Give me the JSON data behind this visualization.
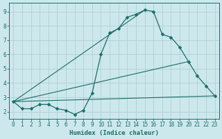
{
  "xlabel": "Humidex (Indice chaleur)",
  "background_color": "#cde8ec",
  "grid_color": "#aecfd4",
  "line_color": "#1a6b6b",
  "xlim": [
    -0.5,
    23.5
  ],
  "ylim": [
    1.5,
    9.6
  ],
  "line1_x": [
    0,
    1,
    2,
    3,
    4,
    5,
    6,
    7,
    8,
    9,
    10,
    11,
    12,
    13,
    14,
    15,
    16,
    17,
    18,
    19,
    20,
    21,
    22,
    23
  ],
  "line1_y": [
    2.7,
    2.2,
    2.2,
    2.5,
    2.5,
    2.2,
    2.1,
    1.8,
    2.1,
    3.3,
    6.0,
    7.5,
    7.8,
    8.6,
    8.8,
    9.1,
    9.0,
    7.4,
    7.2,
    6.5,
    5.5,
    4.5,
    3.8,
    3.1
  ],
  "line2_x": [
    0,
    23
  ],
  "line2_y": [
    2.7,
    3.1
  ],
  "line3_x": [
    0,
    20
  ],
  "line3_y": [
    2.7,
    5.5
  ],
  "line4_x": [
    0,
    15
  ],
  "line4_y": [
    2.7,
    9.1
  ],
  "yticks": [
    2,
    3,
    4,
    5,
    6,
    7,
    8,
    9
  ],
  "xticks": [
    0,
    1,
    2,
    3,
    4,
    5,
    6,
    7,
    8,
    9,
    10,
    11,
    12,
    13,
    14,
    15,
    16,
    17,
    18,
    19,
    20,
    21,
    22,
    23
  ],
  "tick_fontsize": 5.5,
  "xlabel_fontsize": 6.5
}
